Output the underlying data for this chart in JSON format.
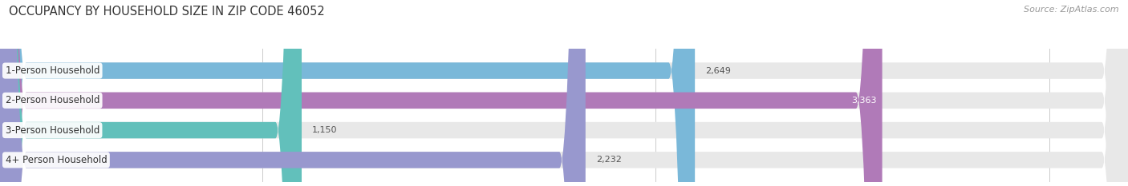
{
  "title": "OCCUPANCY BY HOUSEHOLD SIZE IN ZIP CODE 46052",
  "source": "Source: ZipAtlas.com",
  "categories": [
    "1-Person Household",
    "2-Person Household",
    "3-Person Household",
    "4+ Person Household"
  ],
  "values": [
    2649,
    3363,
    1150,
    2232
  ],
  "bar_colors": [
    "#7ab8d9",
    "#b07ab8",
    "#62c0bb",
    "#9898ce"
  ],
  "xlim": [
    0,
    4300
  ],
  "xticks": [
    1000,
    2500,
    4000
  ],
  "bar_bg_color": "#e8e8e8",
  "title_fontsize": 10.5,
  "source_fontsize": 8,
  "label_fontsize": 8.5,
  "value_fontsize": 8,
  "bar_height": 0.55,
  "bar_gap": 1.0,
  "figsize": [
    14.06,
    2.33
  ]
}
